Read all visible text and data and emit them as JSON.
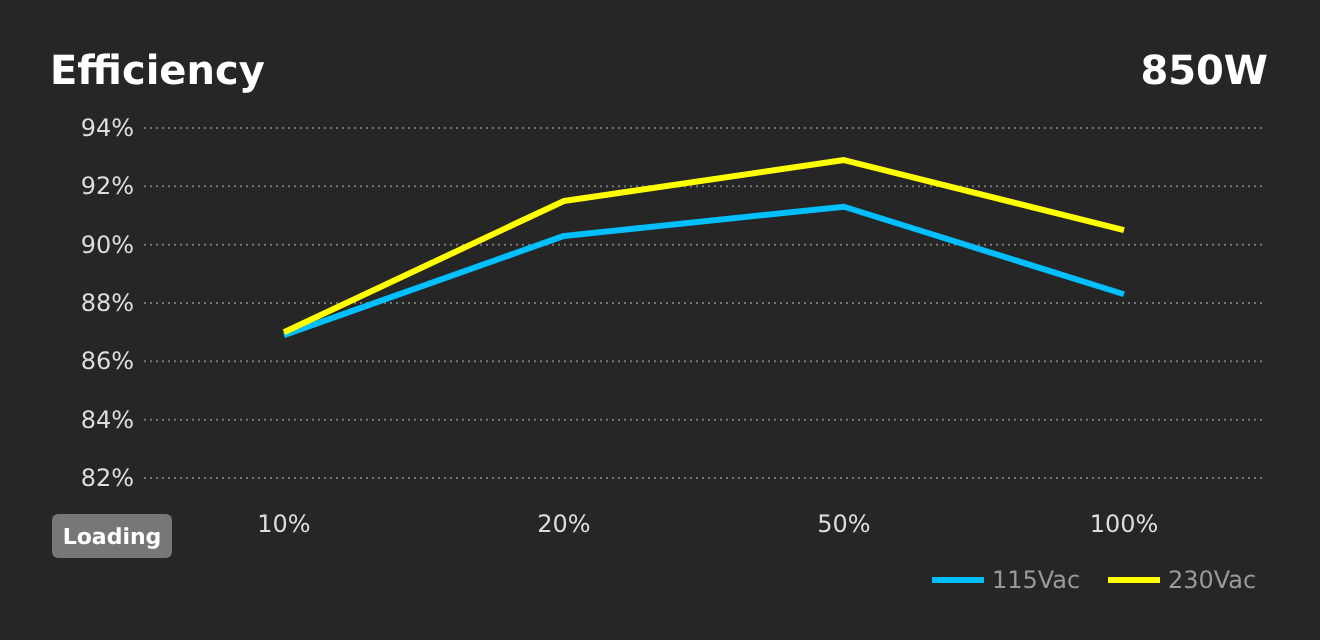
{
  "chart_data": {
    "type": "line",
    "title": "Efficiency",
    "subtitle": "850W",
    "categories": [
      "10%",
      "20%",
      "50%",
      "100%"
    ],
    "series": [
      {
        "name": "115Vac",
        "color": "#00bfff",
        "values": [
          86.9,
          90.3,
          91.3,
          88.3
        ]
      },
      {
        "name": "230Vac",
        "color": "#ffff00",
        "values": [
          87.0,
          91.5,
          92.9,
          90.5
        ]
      }
    ],
    "ylim": [
      82,
      94
    ],
    "yticks": [
      {
        "value": 82,
        "label": "82%"
      },
      {
        "value": 84,
        "label": "84%"
      },
      {
        "value": 86,
        "label": "86%"
      },
      {
        "value": 88,
        "label": "88%"
      },
      {
        "value": 90,
        "label": "90%"
      },
      {
        "value": 92,
        "label": "92%"
      },
      {
        "value": 94,
        "label": "94%"
      }
    ],
    "grid": "y",
    "legend": "bottom right",
    "marker": "none",
    "line_style": "solid",
    "annotations": [
      "Loading"
    ]
  }
}
